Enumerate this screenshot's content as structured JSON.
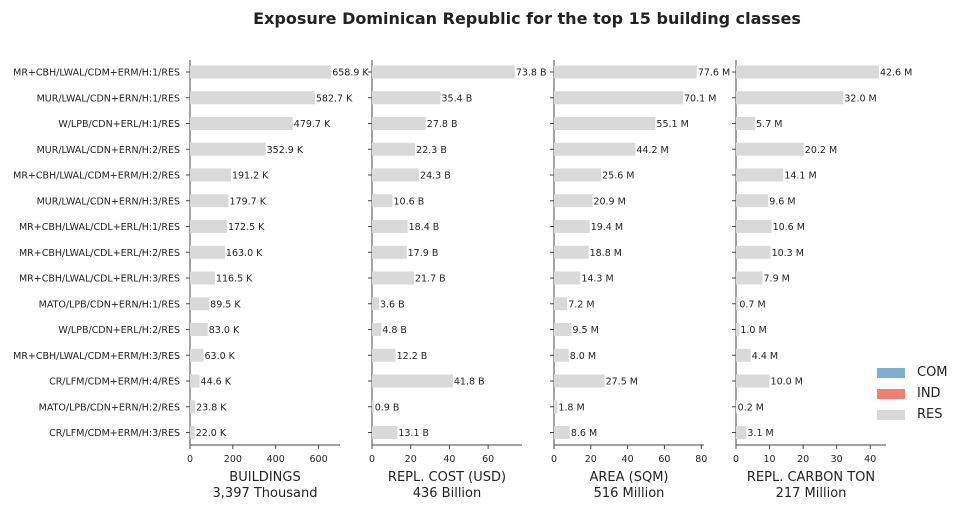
{
  "chart_data": {
    "type": "bar",
    "orientation": "horizontal",
    "title": "Exposure Dominican Republic for the top 15 building classes",
    "categories": [
      "MR+CBH/LWAL/CDM+ERM/H:1/RES",
      "MUR/LWAL/CDN+ERN/H:1/RES",
      "W/LPB/CDN+ERL/H:1/RES",
      "MUR/LWAL/CDN+ERN/H:2/RES",
      "MR+CBH/LWAL/CDM+ERM/H:2/RES",
      "MUR/LWAL/CDN+ERN/H:3/RES",
      "MR+CBH/LWAL/CDL+ERL/H:1/RES",
      "MR+CBH/LWAL/CDL+ERL/H:2/RES",
      "MR+CBH/LWAL/CDL+ERL/H:3/RES",
      "MATO/LPB/CDN+ERN/H:1/RES",
      "W/LPB/CDN+ERL/H:2/RES",
      "MR+CBH/LWAL/CDM+ERM/H:3/RES",
      "CR/LFM/CDM+ERM/H:4/RES",
      "MATO/LPB/CDN+ERN/H:2/RES",
      "CR/LFM/CDM+ERM/H:3/RES"
    ],
    "panels": [
      {
        "xlabel": "BUILDINGS",
        "total": "3,397 Thousand",
        "xlim": [
          0,
          700
        ],
        "ticks": [
          0,
          200,
          400,
          600
        ],
        "values": [
          658.9,
          582.7,
          479.7,
          352.9,
          191.2,
          179.7,
          172.5,
          163.0,
          116.5,
          89.5,
          83.0,
          63.0,
          44.6,
          23.8,
          22.0
        ],
        "labels": [
          "658.9 K",
          "582.7 K",
          "479.7 K",
          "352.9 K",
          "191.2 K",
          "179.7 K",
          "172.5 K",
          "163.0 K",
          "116.5 K",
          "89.5 K",
          "83.0 K",
          "63.0 K",
          "44.6 K",
          "23.8 K",
          "22.0 K"
        ]
      },
      {
        "xlabel": "REPL. COST (USD)",
        "total": "436 Billion",
        "xlim": [
          0,
          77.5
        ],
        "ticks": [
          0,
          20,
          40,
          60
        ],
        "values": [
          73.8,
          35.4,
          27.8,
          22.3,
          24.3,
          10.6,
          18.4,
          17.9,
          21.7,
          3.6,
          4.8,
          12.2,
          41.8,
          0.9,
          13.1
        ],
        "labels": [
          "73.8 B",
          "35.4 B",
          "27.8 B",
          "22.3 B",
          "24.3 B",
          "10.6 B",
          "18.4 B",
          "17.9 B",
          "21.7 B",
          "3.6 B",
          "4.8 B",
          "12.2 B",
          "41.8 B",
          "0.9 B",
          "13.1 B"
        ]
      },
      {
        "xlabel": "AREA (SQM)",
        "total": "516 Million",
        "xlim": [
          0,
          81.5
        ],
        "ticks": [
          0,
          20,
          40,
          60,
          80
        ],
        "values": [
          77.6,
          70.1,
          55.1,
          44.2,
          25.6,
          20.9,
          19.4,
          18.8,
          14.3,
          7.2,
          9.5,
          8.0,
          27.5,
          1.8,
          8.6
        ],
        "labels": [
          "77.6 M",
          "70.1 M",
          "55.1 M",
          "44.2 M",
          "25.6 M",
          "20.9 M",
          "19.4 M",
          "18.8 M",
          "14.3 M",
          "7.2 M",
          "9.5 M",
          "8.0 M",
          "27.5 M",
          "1.8 M",
          "8.6 M"
        ]
      },
      {
        "xlabel": "REPL. CARBON TON",
        "total": "217 Million",
        "xlim": [
          0,
          44.7
        ],
        "ticks": [
          0,
          10,
          20,
          30,
          40
        ],
        "values": [
          42.6,
          32.0,
          5.7,
          20.2,
          14.1,
          9.6,
          10.6,
          10.3,
          7.9,
          0.7,
          1.0,
          4.4,
          10.0,
          0.2,
          3.1
        ],
        "labels": [
          "42.6 M",
          "32.0 M",
          "5.7 M",
          "20.2 M",
          "14.1 M",
          "9.6 M",
          "10.6 M",
          "10.3 M",
          "7.9 M",
          "0.7 M",
          "1.0 M",
          "4.4 M",
          "10.0 M",
          "0.2 M",
          "3.1 M"
        ]
      }
    ],
    "legend": {
      "placement": "right",
      "entries": [
        {
          "name": "COM",
          "color": "#7fafcf"
        },
        {
          "name": "IND",
          "color": "#f47f6f"
        },
        {
          "name": "RES",
          "color": "#d9d9d9"
        }
      ]
    },
    "bar_color": "#d9d9d9",
    "grid": false
  }
}
